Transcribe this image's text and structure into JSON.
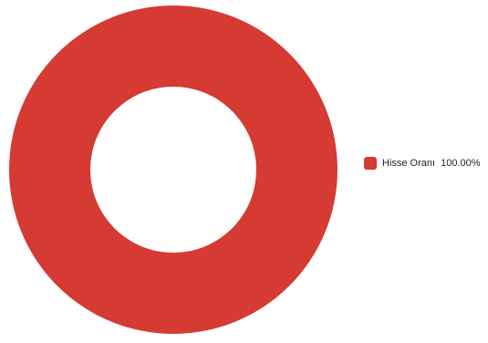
{
  "chart_data": {
    "type": "pie",
    "variant": "donut",
    "slices": [
      {
        "label": "Hisse Oranı",
        "value": 100.0,
        "display": "100.00%",
        "color": "#d53a33"
      }
    ],
    "legend_position": "right"
  },
  "legend": {
    "items": [
      {
        "label": "Hisse Oranı",
        "value": "100.00%"
      }
    ]
  }
}
